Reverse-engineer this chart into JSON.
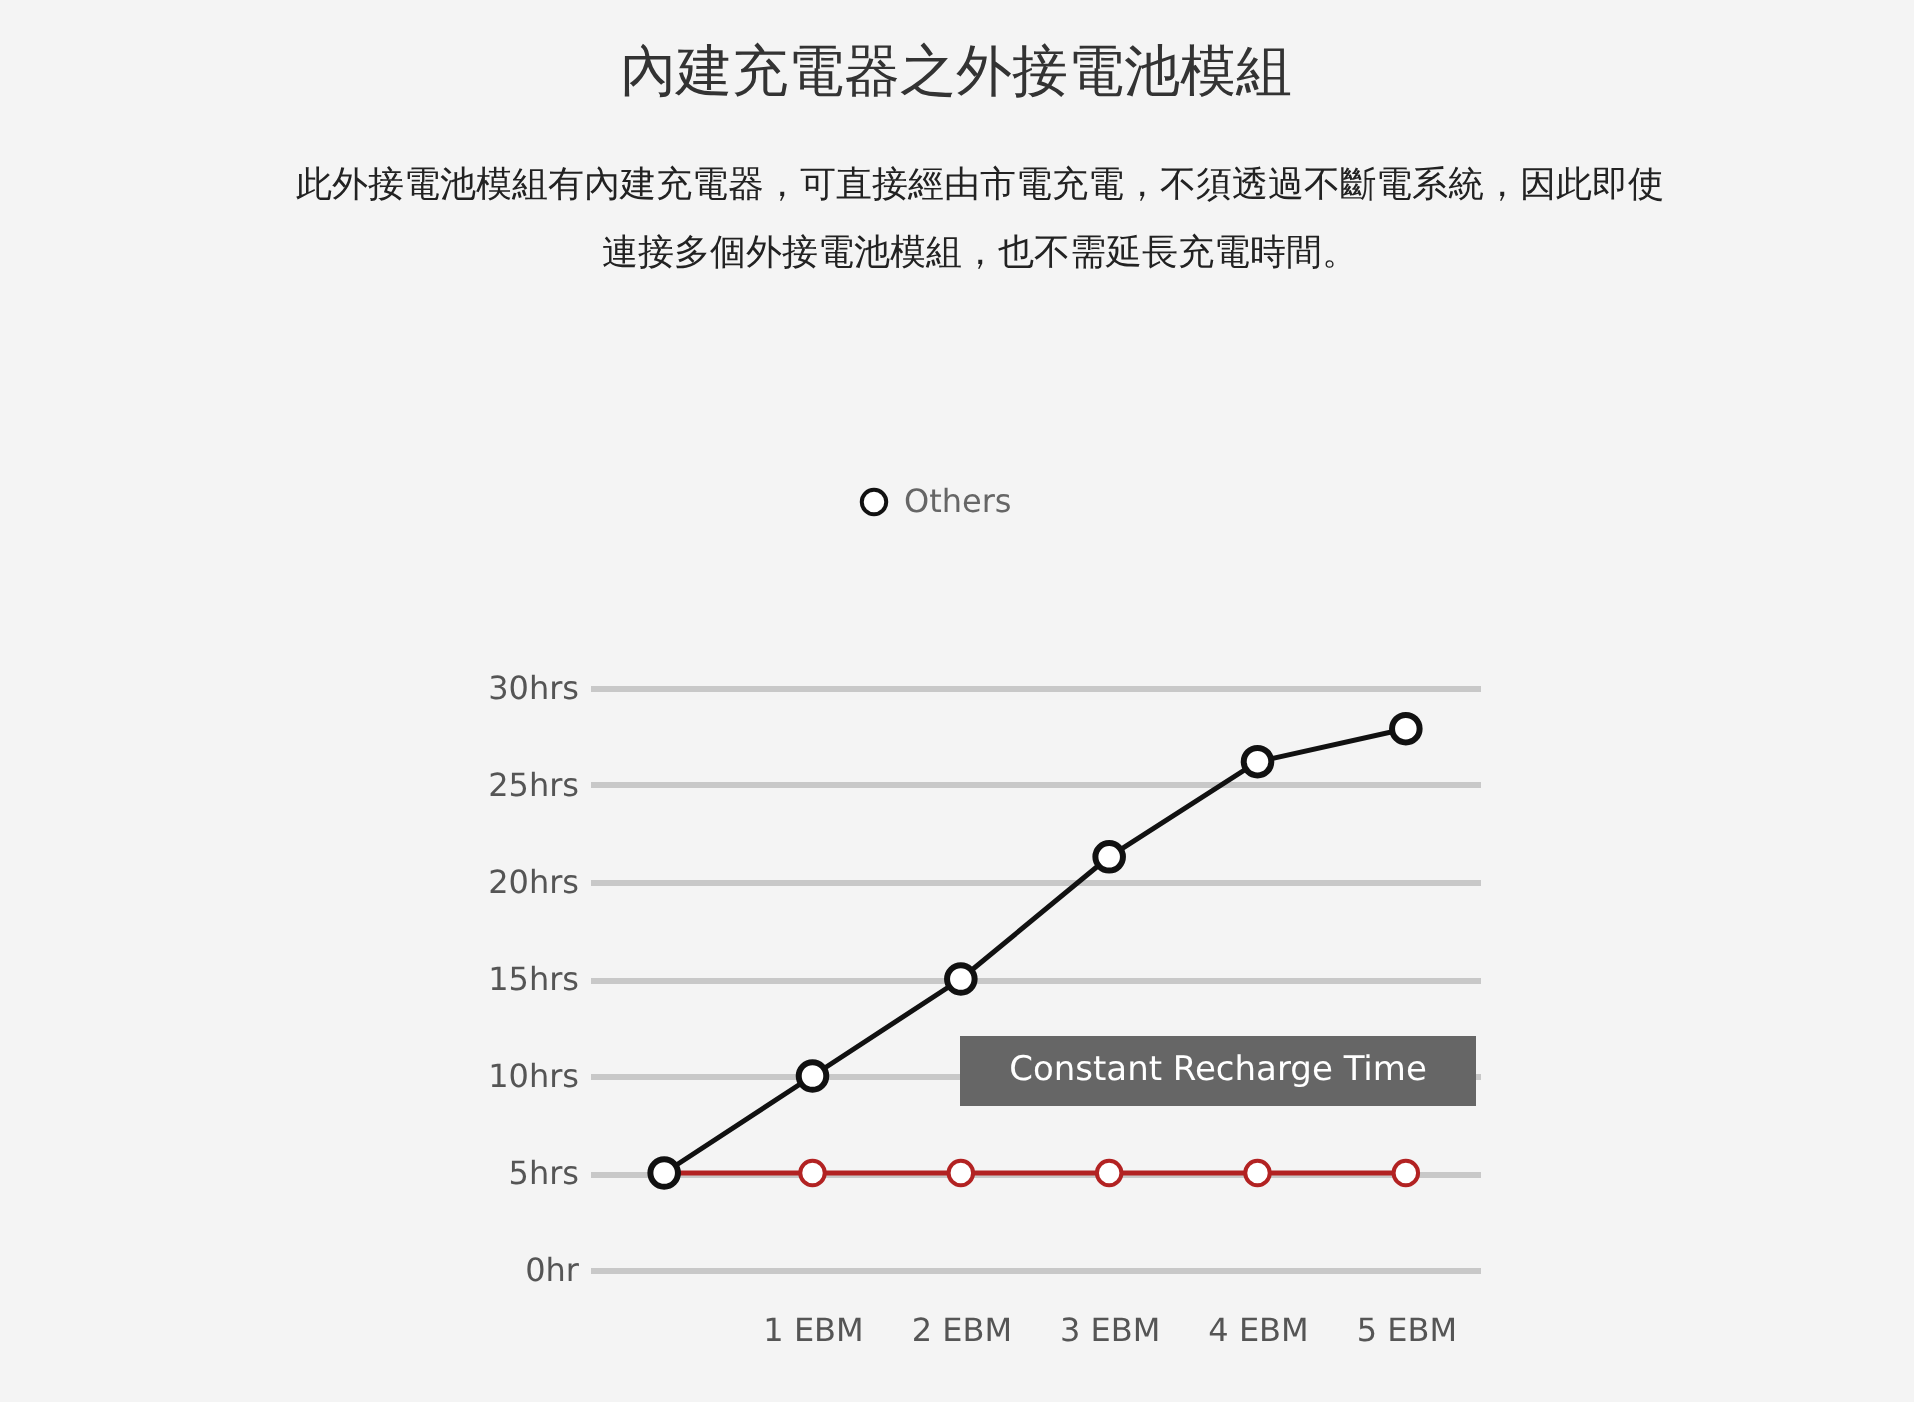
{
  "chart_data": {
    "type": "line",
    "title": "內建充電器之外接電池模組",
    "subtitle": "此外接電池模組有內建充電器，可直接經由市電充電，不須透過不斷電系統，因此即使連接多個外接電池模組，也不需延長充電時間。",
    "categories": [
      null,
      "1 EBM",
      "2 EBM",
      "3 EBM",
      "4 EBM",
      "5 EBM"
    ],
    "series": [
      {
        "name": "Others",
        "color": "#111111",
        "values": [
          5,
          10,
          15,
          21.3,
          26.2,
          27.9
        ]
      },
      {
        "color": "#b22222",
        "values": [
          5,
          5,
          5,
          5,
          5,
          5
        ]
      }
    ],
    "ylim": [
      0,
      30
    ],
    "yticks": [
      {
        "value": 0,
        "label": "0hr"
      },
      {
        "value": 5,
        "label": "5hrs"
      },
      {
        "value": 10,
        "label": "10hrs"
      },
      {
        "value": 15,
        "label": "15hrs"
      },
      {
        "value": 20,
        "label": "20hrs"
      },
      {
        "value": 25,
        "label": "25hrs"
      },
      {
        "value": 30,
        "label": "30hrs"
      }
    ],
    "grid": "y",
    "legend": "top",
    "marker": "circle",
    "line_style": "solid",
    "annotations": [
      "Constant Recharge Time"
    ]
  }
}
